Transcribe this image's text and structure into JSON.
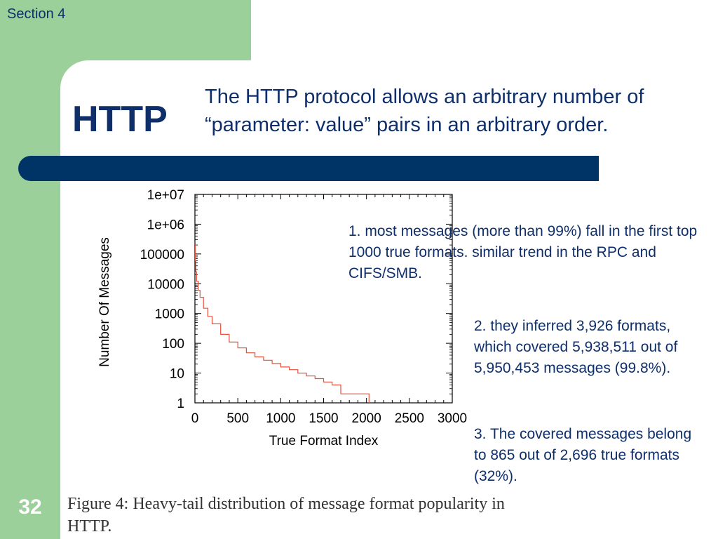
{
  "header": {
    "section": "Section 4"
  },
  "slide": {
    "title": "HTTP",
    "subtitle": "The HTTP protocol allows an arbitrary number of “parameter: value” pairs in an arbitrary order.",
    "page_number": "32"
  },
  "notes": [
    "1. most messages (more than 99%) fall in the first top 1000 true formats. similar trend in the RPC and CIFS/SMB.",
    "2. they inferred 3,926 formats, which covered 5,938,511 out of 5,950,453 messages (99.8%).",
    "3. The covered messages belong to 865 out of 2,696 true formats (32%)."
  ],
  "caption": "Figure 4: Heavy-tail distribution of message format popularity in HTTP.",
  "colors": {
    "title_text": "#0f2f6b",
    "green_panel": "#9cd09a",
    "bar": "#003366",
    "series_line": "#e8503c"
  },
  "chart_data": {
    "type": "line",
    "title": "",
    "xlabel": "True Format Index",
    "ylabel": "Number Of Messages",
    "xlim": [
      0,
      3000
    ],
    "ylim": [
      1,
      10000000
    ],
    "yscale": "log",
    "grid": false,
    "x_ticks": [
      "0",
      "500",
      "1000",
      "1500",
      "2000",
      "2500",
      "3000"
    ],
    "y_ticks": [
      "1",
      "10",
      "100",
      "1000",
      "10000",
      "100000",
      "1e+06",
      "1e+07"
    ],
    "series": [
      {
        "color": "#e8503c",
        "points": [
          [
            1,
            200000
          ],
          [
            5,
            60000
          ],
          [
            10,
            25000
          ],
          [
            20,
            12000
          ],
          [
            40,
            6000
          ],
          [
            60,
            3500
          ],
          [
            100,
            1500
          ],
          [
            150,
            800
          ],
          [
            200,
            450
          ],
          [
            300,
            200
          ],
          [
            400,
            110
          ],
          [
            500,
            70
          ],
          [
            600,
            48
          ],
          [
            700,
            35
          ],
          [
            800,
            27
          ],
          [
            900,
            21
          ],
          [
            1000,
            16
          ],
          [
            1100,
            13
          ],
          [
            1200,
            10
          ],
          [
            1300,
            8
          ],
          [
            1400,
            6.5
          ],
          [
            1500,
            5
          ],
          [
            1600,
            4
          ],
          [
            1700,
            2
          ],
          [
            1800,
            2
          ],
          [
            1900,
            2
          ],
          [
            2000,
            2
          ],
          [
            2030,
            1
          ]
        ]
      }
    ]
  }
}
